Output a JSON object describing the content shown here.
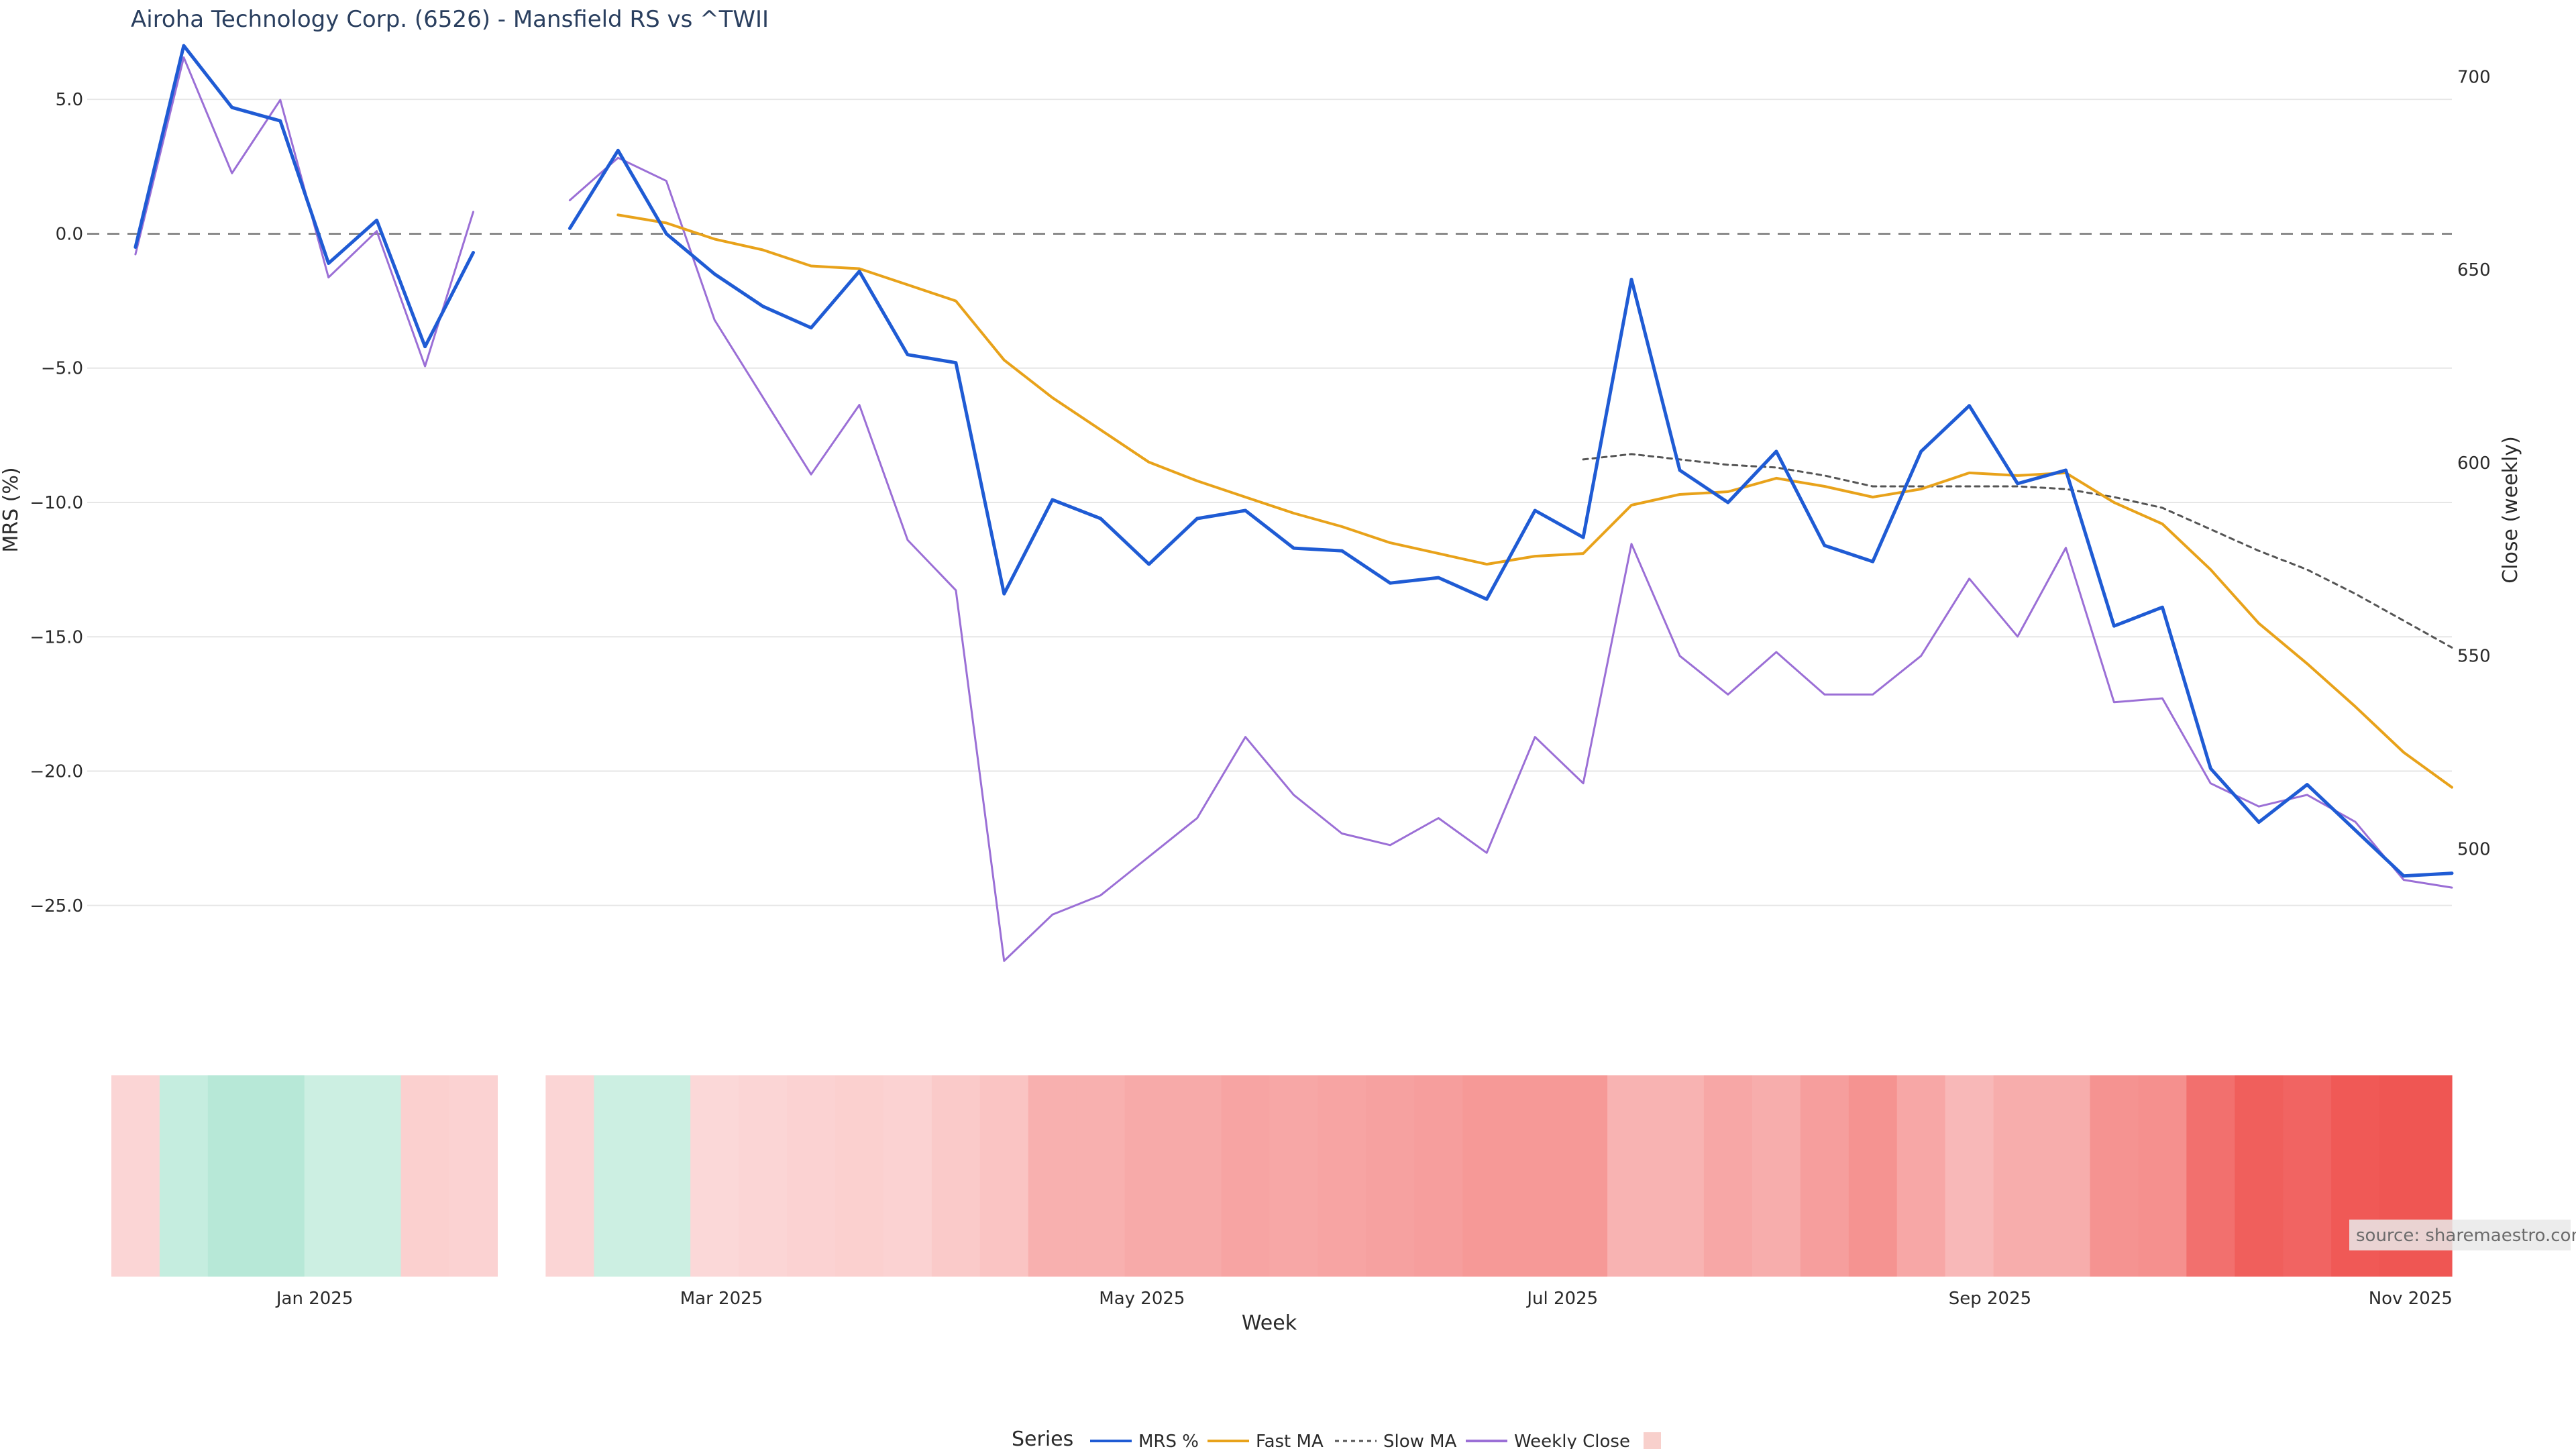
{
  "chart_data": {
    "type": "line",
    "title": "Airoha Technology Corp. (6526) - Mansfield RS vs ^TWII",
    "ylabel": "MRS (%)",
    "y2label": "Close (weekly)",
    "xlabel": "Week",
    "ylim": [
      -28.5,
      8.0
    ],
    "y2lim": [
      461.0,
      715.0
    ],
    "yticks": [
      5.0,
      0.0,
      -5.0,
      -10.0,
      -15.0,
      -20.0,
      -25.0
    ],
    "ytick_labels": [
      "5.0",
      "0.0",
      "−5.0",
      "−10.0",
      "−15.0",
      "−20.0",
      "−25.0"
    ],
    "y2ticks": [
      700,
      650,
      600,
      550,
      500
    ],
    "y2tick_labels": [
      "700",
      "650",
      "600",
      "550",
      "500"
    ],
    "x_start": "2024-11-29",
    "x_end": "2025-11-07",
    "xticks": [
      {
        "date": "2025-01-01",
        "label": "Jan 2025"
      },
      {
        "date": "2025-03-01",
        "label": "Mar 2025"
      },
      {
        "date": "2025-05-01",
        "label": "May 2025"
      },
      {
        "date": "2025-07-01",
        "label": "Jul 2025"
      },
      {
        "date": "2025-09-01",
        "label": "Sep 2025"
      },
      {
        "date": "2025-11-01",
        "label": "Nov 2025"
      }
    ],
    "reference_line": 0.0,
    "dates": [
      "2024-12-06",
      "2024-12-13",
      "2024-12-20",
      "2024-12-27",
      "2025-01-03",
      "2025-01-10",
      "2025-01-17",
      "2025-01-24",
      "2025-01-31",
      "2025-02-07",
      "2025-02-14",
      "2025-02-21",
      "2025-02-28",
      "2025-03-07",
      "2025-03-14",
      "2025-03-21",
      "2025-03-28",
      "2025-04-04",
      "2025-04-11",
      "2025-04-18",
      "2025-04-25",
      "2025-05-02",
      "2025-05-09",
      "2025-05-16",
      "2025-05-23",
      "2025-05-30",
      "2025-06-06",
      "2025-06-13",
      "2025-06-20",
      "2025-06-27",
      "2025-07-04",
      "2025-07-11",
      "2025-07-18",
      "2025-07-25",
      "2025-08-01",
      "2025-08-08",
      "2025-08-15",
      "2025-08-22",
      "2025-08-29",
      "2025-09-05",
      "2025-09-12",
      "2025-09-19",
      "2025-09-26",
      "2025-10-03",
      "2025-10-10",
      "2025-10-17",
      "2025-10-24",
      "2025-10-31",
      "2025-11-07"
    ],
    "series": [
      {
        "name": "MRS %",
        "axis": "y",
        "color": "#1f5bd4",
        "dash": "solid",
        "width": 5,
        "values": [
          -0.5,
          7.0,
          4.7,
          4.2,
          -1.1,
          0.5,
          -4.2,
          -0.7,
          null,
          0.2,
          3.1,
          0.0,
          -1.5,
          -2.7,
          -3.5,
          -1.4,
          -4.5,
          -4.8,
          -13.4,
          -9.9,
          -10.6,
          -12.3,
          -10.6,
          -10.3,
          -11.7,
          -11.8,
          -13.0,
          -12.8,
          -13.6,
          -10.3,
          -11.3,
          -1.7,
          -8.8,
          -10.0,
          -8.1,
          -11.6,
          -12.2,
          -8.1,
          -6.4,
          -9.3,
          -8.8,
          -14.6,
          -13.9,
          -19.9,
          -21.9,
          -20.5,
          -22.2,
          -23.9,
          -23.8
        ]
      },
      {
        "name": "Fast MA",
        "axis": "y",
        "color": "#e8a21a",
        "dash": "solid",
        "width": 4,
        "values": [
          null,
          null,
          null,
          null,
          null,
          null,
          null,
          null,
          null,
          null,
          0.7,
          0.4,
          -0.2,
          -0.6,
          -1.2,
          -1.3,
          -1.9,
          -2.5,
          -4.7,
          -6.1,
          -7.3,
          -8.5,
          -9.2,
          -9.8,
          -10.4,
          -10.9,
          -11.5,
          -11.9,
          -12.3,
          -12.0,
          -11.9,
          -10.1,
          -9.7,
          -9.6,
          -9.1,
          -9.4,
          -9.8,
          -9.5,
          -8.9,
          -9.0,
          -8.9,
          -10.0,
          -10.8,
          -12.5,
          -14.5,
          -16.0,
          -17.6,
          -19.3,
          -20.6
        ]
      },
      {
        "name": "Slow MA",
        "axis": "y",
        "color": "#555555",
        "dash": "dot",
        "width": 3,
        "values": [
          null,
          null,
          null,
          null,
          null,
          null,
          null,
          null,
          null,
          null,
          null,
          null,
          null,
          null,
          null,
          null,
          null,
          null,
          null,
          null,
          null,
          null,
          null,
          null,
          null,
          null,
          null,
          null,
          null,
          null,
          -8.4,
          -8.2,
          -8.4,
          -8.6,
          -8.7,
          -9.0,
          -9.4,
          -9.4,
          -9.4,
          -9.4,
          -9.5,
          -9.8,
          -10.2,
          -11.0,
          -11.8,
          -12.5,
          -13.4,
          -14.4,
          -15.4
        ]
      },
      {
        "name": "Weekly Close",
        "axis": "y2",
        "color": "#9b6fd6",
        "dash": "solid",
        "width": 3,
        "values": [
          654,
          705,
          675,
          694,
          648,
          660,
          625,
          665,
          null,
          668,
          679,
          673,
          637,
          617,
          597,
          615,
          580,
          567,
          471,
          483,
          488,
          498,
          508,
          529,
          514,
          504,
          501,
          508,
          499,
          529,
          517,
          579,
          550,
          540,
          551,
          540,
          540,
          550,
          570,
          555,
          578,
          538,
          539,
          517,
          511,
          514,
          507,
          492,
          490
        ]
      }
    ],
    "heatmap": {
      "label": "",
      "values": [
        -1.5,
        3.0,
        4.0,
        4.0,
        2.5,
        2.5,
        -2.5,
        -2.0,
        null,
        -1.5,
        2.5,
        2.5,
        -1.0,
        -1.5,
        -2.0,
        -2.5,
        -2.0,
        -3.5,
        -4.5,
        -8.0,
        -8.0,
        -9.0,
        -9.0,
        -10.0,
        -9.5,
        -10.0,
        -10.5,
        -11.0,
        -12.0,
        -12.0,
        -12.0,
        -7.5,
        -7.5,
        -9.5,
        -8.5,
        -11.0,
        -13.0,
        -9.5,
        -6.5,
        -8.5,
        -8.5,
        -13.0,
        -13.5,
        -19.0,
        -22.0,
        -21.0,
        -23.0,
        -23.5,
        -23.5
      ]
    },
    "legend": {
      "title": "Series",
      "placement": "bottom-center",
      "items": [
        {
          "label": "MRS %",
          "color": "#1f5bd4",
          "dash": "solid"
        },
        {
          "label": "Fast MA",
          "color": "#e8a21a",
          "dash": "solid"
        },
        {
          "label": "Slow MA",
          "color": "#555555",
          "dash": "dot"
        },
        {
          "label": "Weekly Close",
          "color": "#9b6fd6",
          "dash": "solid"
        },
        {
          "label": "",
          "color": "#f8d0cc",
          "swatch": "square"
        }
      ]
    },
    "source": "source: sharemaestro.com"
  }
}
